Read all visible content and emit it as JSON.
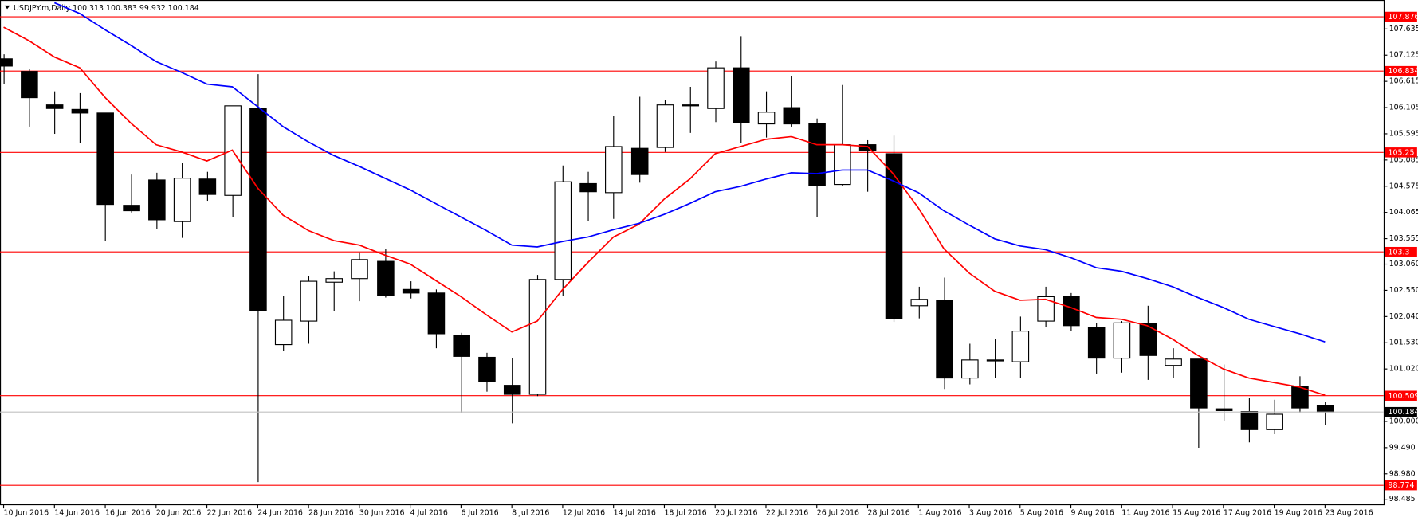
{
  "chart_data": {
    "type": "candlestick",
    "title": "USDJPY.m,Daily",
    "categories": [
      "10 Jun 2016",
      null,
      "14 Jun 2016",
      null,
      "16 Jun 2016",
      null,
      "20 Jun 2016",
      null,
      "22 Jun 2016",
      null,
      "24 Jun 2016",
      null,
      "28 Jun 2016",
      null,
      "30 Jun 2016",
      null,
      "4 Jul 2016",
      null,
      "6 Jul 2016",
      null,
      "8 Jul 2016",
      null,
      "12 Jul 2016",
      null,
      "14 Jul 2016",
      null,
      "18 Jul 2016",
      null,
      "20 Jul 2016",
      null,
      "22 Jul 2016",
      null,
      "26 Jul 2016",
      null,
      "28 Jul 2016",
      null,
      "1 Aug 2016",
      null,
      "3 Aug 2016",
      null,
      "5 Aug 2016",
      null,
      "9 Aug 2016",
      null,
      "11 Aug 2016",
      null,
      "15 Aug 2016",
      null,
      "17 Aug 2016",
      null,
      "19 Aug 2016",
      null,
      "23 Aug 2016"
    ],
    "open": [
      107.054,
      106.808,
      106.157,
      106.069,
      105.999,
      104.204,
      104.696,
      103.887,
      104.714,
      104.397,
      106.087,
      101.494,
      101.951,
      102.708,
      102.778,
      103.113,
      102.567,
      102.497,
      101.67,
      101.247,
      100.702,
      100.526,
      102.761,
      104.626,
      104.45,
      105.312,
      105.33,
      106.157,
      106.087,
      106.878,
      105.787,
      106.104,
      105.787,
      104.609,
      105.383,
      105.207,
      102.25,
      102.356,
      100.843,
      101.177,
      101.16,
      101.951,
      102.426,
      101.828,
      101.23,
      101.898,
      101.089,
      101.212,
      100.245,
      100.192,
      99.84,
      100.684,
      100.313
    ],
    "high": [
      107.142,
      106.861,
      106.421,
      106.386,
      106.0,
      104.802,
      104.837,
      105.031,
      104.855,
      106.139,
      106.755,
      102.444,
      102.831,
      102.919,
      103.289,
      103.359,
      102.726,
      102.567,
      101.723,
      101.335,
      101.23,
      102.849,
      104.978,
      104.855,
      105.945,
      106.315,
      106.245,
      106.509,
      107.002,
      107.494,
      106.421,
      106.72,
      105.893,
      106.544,
      105.471,
      105.559,
      102.62,
      102.796,
      101.511,
      101.599,
      102.039,
      102.62,
      102.497,
      101.916,
      101.951,
      102.25,
      101.423,
      101.212,
      101.107,
      100.456,
      100.421,
      100.878,
      100.383
    ],
    "low": [
      106.562,
      105.735,
      105.594,
      105.418,
      103.518,
      104.063,
      103.746,
      103.57,
      104.292,
      103.975,
      98.819,
      101.371,
      101.511,
      102.145,
      102.338,
      102.409,
      102.391,
      101.423,
      100.157,
      100.578,
      99.963,
      100.491,
      102.444,
      103.905,
      103.94,
      104.644,
      105.242,
      105.612,
      105.823,
      105.418,
      105.523,
      105.735,
      103.975,
      104.573,
      104.468,
      101.934,
      102.004,
      100.632,
      100.72,
      100.843,
      100.843,
      101.828,
      101.757,
      100.93,
      100.948,
      100.807,
      100.843,
      99.488,
      100.0,
      99.593,
      99.752,
      100.174,
      99.932
    ],
    "close": [
      106.913,
      106.298,
      106.087,
      105.999,
      104.221,
      104.098,
      103.922,
      104.732,
      104.415,
      106.139,
      102.162,
      101.968,
      102.726,
      102.778,
      103.148,
      102.444,
      102.497,
      101.705,
      101.265,
      100.772,
      100.526,
      102.761,
      104.661,
      104.468,
      105.347,
      104.802,
      106.157,
      106.139,
      106.878,
      105.805,
      106.016,
      105.787,
      104.591,
      105.383,
      105.277,
      102.004,
      102.374,
      100.843,
      101.195,
      101.195,
      101.757,
      102.426,
      101.863,
      101.23,
      101.916,
      101.282,
      101.212,
      100.262,
      100.21,
      99.84,
      100.139,
      100.262,
      100.184
    ],
    "lines": [
      {
        "color": "#ff0000",
        "values": [
          107.67,
          107.406,
          107.089,
          106.878,
          106.298,
          105.805,
          105.383,
          105.242,
          105.066,
          105.277,
          104.538,
          104.01,
          103.711,
          103.517,
          103.429,
          103.236,
          103.06,
          102.743,
          102.426,
          102.074,
          101.74,
          101.951,
          102.567,
          103.095,
          103.588,
          103.834,
          104.327,
          104.714,
          105.207,
          105.347,
          105.488,
          105.541,
          105.383,
          105.383,
          105.347,
          104.82,
          104.151,
          103.359,
          102.884,
          102.532,
          102.356,
          102.374,
          102.215,
          102.022,
          101.986,
          101.863,
          101.599,
          101.283,
          101.019,
          100.843,
          100.755,
          100.667,
          100.508
        ]
      },
      {
        "color": "#0000ff",
        "values": [
          null,
          null,
          108.145,
          107.934,
          107.617,
          107.318,
          107.001,
          106.79,
          106.562,
          106.509,
          106.122,
          105.734,
          105.435,
          105.171,
          104.96,
          104.731,
          104.503,
          104.239,
          103.975,
          103.711,
          103.429,
          103.394,
          103.5,
          103.588,
          103.729,
          103.852,
          104.028,
          104.239,
          104.468,
          104.573,
          104.714,
          104.837,
          104.82,
          104.89,
          104.89,
          104.679,
          104.45,
          104.098,
          103.817,
          103.552,
          103.412,
          103.341,
          103.183,
          102.99,
          102.919,
          102.778,
          102.62,
          102.409,
          102.215,
          101.987,
          101.845,
          101.705,
          101.547
        ]
      }
    ],
    "levels": [
      107.876,
      106.834,
      105.25,
      103.3,
      100.509,
      98.774
    ],
    "level_color": "#ff0000",
    "ylim": [
      98.379,
      108.198
    ],
    "yticks": [
      107.635,
      107.125,
      106.615,
      106.105,
      105.595,
      105.085,
      104.575,
      104.065,
      103.555,
      {
        "value": 103.06,
        "label": "103.060"
      },
      {
        "value": 102.55,
        "label": "102.550"
      },
      {
        "value": 102.04,
        "label": "102.040"
      },
      {
        "value": 101.53,
        "label": "101.530"
      },
      {
        "value": 101.02,
        "label": "101.020"
      },
      {
        "value": 100,
        "label": "100.000"
      },
      {
        "value": 99.49,
        "label": "99.490"
      },
      {
        "value": 98.98,
        "label": "98.980"
      },
      98.485
    ]
  }
}
